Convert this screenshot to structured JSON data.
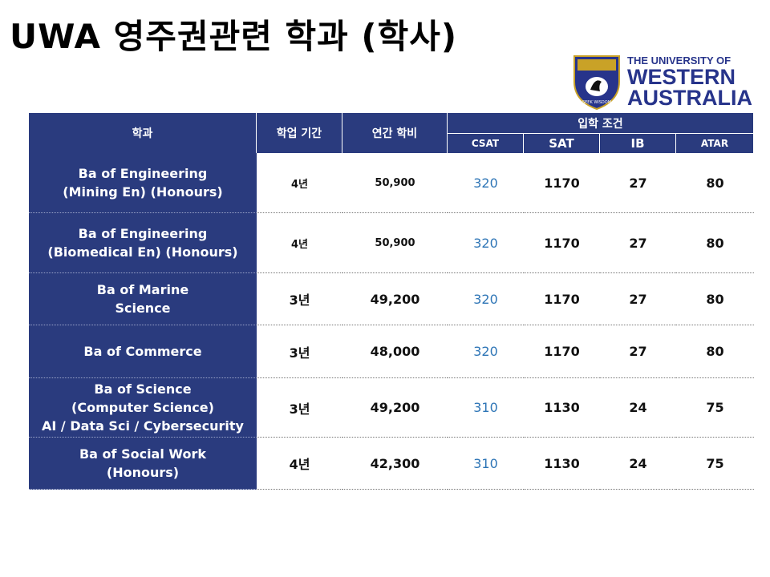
{
  "header": {
    "title": "UWA 영주권관련 학과 (학사)",
    "logo": {
      "motto": "SEEK WISDOM",
      "line1": "THE UNIVERSITY OF",
      "line2": "WESTERN",
      "line3": "AUSTRALIA"
    }
  },
  "table": {
    "columns": [
      "학과",
      "학업 기간",
      "연간 학비",
      "입학 조건"
    ],
    "subcolumns": [
      "CSAT",
      "SAT",
      "IB",
      "ATAR"
    ],
    "rows": [
      [
        [
          "Ba of Engineering",
          "(Mining En) (Honours)"
        ],
        "4년",
        "50,900",
        "320",
        "1170",
        "27",
        "80"
      ],
      [
        [
          "Ba of Engineering",
          "(Biomedical En) (Honours)"
        ],
        "4년",
        "50,900",
        "320",
        "1170",
        "27",
        "80"
      ],
      [
        [
          "Ba of Marine",
          "Science"
        ],
        "3년",
        "49,200",
        "320",
        "1170",
        "27",
        "80"
      ],
      [
        [
          "Ba of Commerce"
        ],
        "3년",
        "48,000",
        "320",
        "1170",
        "27",
        "80"
      ],
      [
        [
          "Ba of  Science",
          "(Computer Science)",
          "AI / Data Sci / Cybersecurity"
        ],
        "3년",
        "49,200",
        "310",
        "1130",
        "24",
        "75"
      ],
      [
        [
          "Ba of Social Work",
          "(Honours)"
        ],
        "4년",
        "42,300",
        "310",
        "1130",
        "24",
        "75"
      ]
    ]
  }
}
